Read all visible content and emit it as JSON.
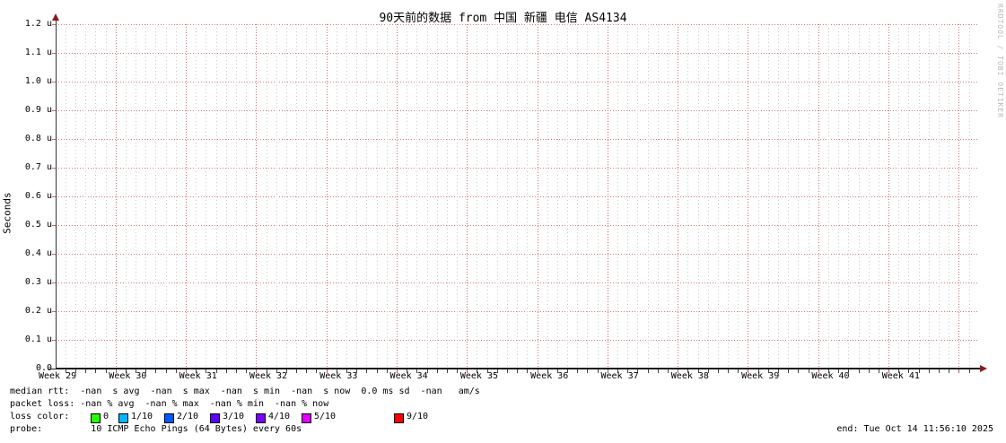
{
  "title": "90天前的数据 from 中国 新疆 电信 AS4134",
  "watermark": "RRDTOOL / TOBI OETIKER",
  "axes": {
    "ylabel": "Seconds",
    "y_ticks": [
      "1.2 u",
      "1.1 u",
      "1.0 u",
      "0.9 u",
      "0.8 u",
      "0.7 u",
      "0.6 u",
      "0.5 u",
      "0.4 u",
      "0.3 u",
      "0.2 u",
      "0.1 u",
      "0.0"
    ],
    "x_ticks": [
      "Week 29",
      "Week 30",
      "Week 31",
      "Week 32",
      "Week 33",
      "Week 34",
      "Week 35",
      "Week 36",
      "Week 37",
      "Week 38",
      "Week 39",
      "Week 40",
      "Week 41"
    ]
  },
  "legend": {
    "median_rtt_line": "median rtt:  -nan  s avg  -nan  s max  -nan  s min  -nan  s now  0.0 ms sd  -nan   am/s",
    "packet_loss_line": "packet loss: -nan % avg  -nan % max  -nan % min  -nan % now",
    "loss_color_label": "loss color:",
    "loss_levels": [
      {
        "label": "0",
        "color": "#26ff00"
      },
      {
        "label": "1/10",
        "color": "#00b8ff"
      },
      {
        "label": "2/10",
        "color": "#0059ff"
      },
      {
        "label": "3/10",
        "color": "#5e00ff"
      },
      {
        "label": "4/10",
        "color": "#7e00ff"
      },
      {
        "label": "5/10",
        "color": "#dd00ff"
      },
      {
        "label": "9/10",
        "color": "#ff0000"
      }
    ],
    "probe_line": "probe:         10 ICMP Echo Pings (64 Bytes) every 60s",
    "end_line": "end: Tue Oct 14 11:56:10 2025"
  },
  "chart_data": {
    "type": "line",
    "title": "90天前的数据 from 中国 新疆 电信 AS4134",
    "xlabel": "",
    "ylabel": "Seconds",
    "x_tick_labels": [
      "Week 29",
      "Week 30",
      "Week 31",
      "Week 32",
      "Week 33",
      "Week 34",
      "Week 35",
      "Week 36",
      "Week 37",
      "Week 38",
      "Week 39",
      "Week 40",
      "Week 41"
    ],
    "y_tick_labels": [
      "0.0",
      "0.1 u",
      "0.2 u",
      "0.3 u",
      "0.4 u",
      "0.5 u",
      "0.6 u",
      "0.7 u",
      "0.8 u",
      "0.9 u",
      "1.0 u",
      "1.1 u",
      "1.2 u"
    ],
    "ylim": [
      0,
      1.2e-06
    ],
    "y_unit": "seconds (u = microseconds)",
    "grid": true,
    "legend_position": "bottom",
    "no_data": true,
    "series": [
      {
        "name": "median rtt",
        "values": [],
        "stats": {
          "avg": "-nan s",
          "max": "-nan s",
          "min": "-nan s",
          "now": "-nan s",
          "sd": "0.0 ms"
        }
      },
      {
        "name": "packet loss",
        "values": [],
        "stats": {
          "avg": "-nan %",
          "max": "-nan %",
          "min": "-nan %",
          "now": "-nan %"
        }
      }
    ],
    "loss_color_map": [
      {
        "label": "0",
        "color": "#26ff00"
      },
      {
        "label": "1/10",
        "color": "#00b8ff"
      },
      {
        "label": "2/10",
        "color": "#0059ff"
      },
      {
        "label": "3/10",
        "color": "#5e00ff"
      },
      {
        "label": "4/10",
        "color": "#7e00ff"
      },
      {
        "label": "5/10",
        "color": "#dd00ff"
      },
      {
        "label": "9/10",
        "color": "#ff0000"
      }
    ],
    "probe": "10 ICMP Echo Pings (64 Bytes) every 60s",
    "end_time": "Tue Oct 14 11:56:10 2025"
  }
}
